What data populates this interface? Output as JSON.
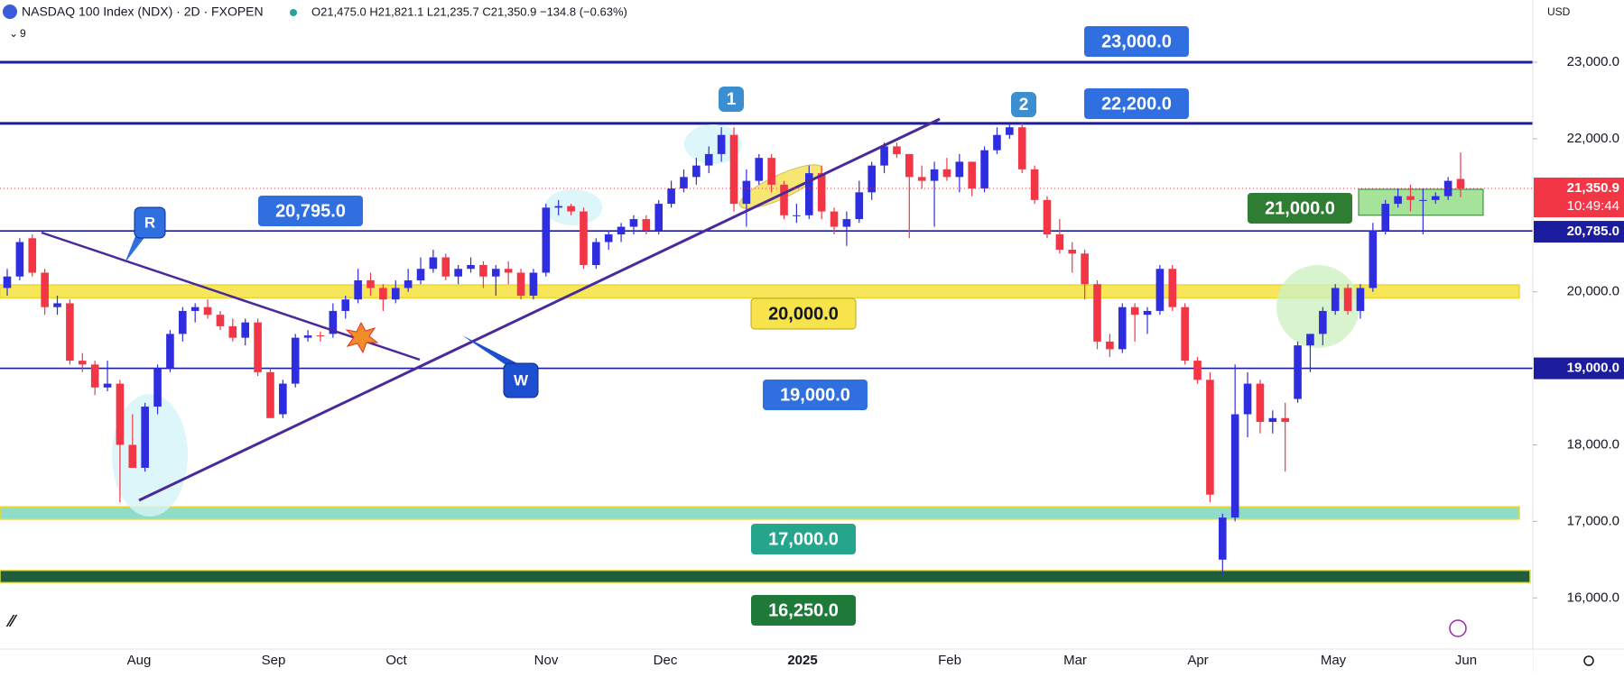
{
  "header": {
    "symbol": "NASDAQ 100 Index (NDX) · 2D · FXOPEN",
    "ohlc": "O21,475.0 H21,821.1 L21,235.7 C21,350.9 −134.8 (−0.63%)",
    "indicator_count": "9",
    "currency": "USD",
    "countdown": "10:49:44"
  },
  "chart_data": {
    "type": "candlestick",
    "up_color": "#2e2ee0",
    "down_color": "#f23645",
    "ylim": [
      15332,
      23813
    ],
    "yticks": [
      {
        "value": 16000,
        "label": "16,000.0"
      },
      {
        "value": 17000,
        "label": "17,000.0"
      },
      {
        "value": 18000,
        "label": "18,000.0"
      },
      {
        "value": 20000,
        "label": "20,000.0"
      },
      {
        "value": 22000,
        "label": "22,000.0"
      },
      {
        "value": 23000,
        "label": "23,000.0"
      }
    ],
    "x_labels": [
      "Aug",
      "Sep",
      "Oct",
      "Nov",
      "Dec",
      "2025",
      "Feb",
      "Mar",
      "Apr",
      "May",
      "Jun"
    ],
    "price_markers": [
      {
        "value": 21350.9,
        "label": "21,350.9",
        "color": "#f23645"
      },
      {
        "value": 20785,
        "label": "20,785.0",
        "color": "#1c1c9e"
      },
      {
        "value": 19000,
        "label": "19,000.0",
        "color": "#1c1c9e"
      }
    ],
    "levels": [
      {
        "value": 23000,
        "label": "23,000.0",
        "kind": "line",
        "color": "#1c1c9e",
        "box_color": "#2f6fe0"
      },
      {
        "value": 22200,
        "label": "22,200.0",
        "kind": "line",
        "color": "#1c1c9e",
        "box_color": "#2f6fe0"
      },
      {
        "value": 20795,
        "label": "20,795.0",
        "kind": "thin",
        "color": "#1c1c9e",
        "box_color": "#2f6fe0"
      },
      {
        "value": 20000,
        "label": "20,000.0",
        "kind": "band",
        "band": [
          19920,
          20090
        ],
        "color": "#f7e65a",
        "box_color": "#f7e34b"
      },
      {
        "value": 19000,
        "label": "19,000.0",
        "kind": "thin",
        "color": "#1c1c9e",
        "box_color": "#2f6fe0"
      },
      {
        "value": 17000,
        "label": "17,000.0",
        "kind": "band",
        "band": [
          17030,
          17190
        ],
        "color": "#8fdcc8",
        "box_color": "#25a58c"
      },
      {
        "value": 16250,
        "label": "16,250.0",
        "kind": "band",
        "band": [
          16200,
          16360
        ],
        "color": "#1e5e3c",
        "box_color": "#1f7a3a"
      },
      {
        "value": 21000,
        "label": "21,000.0",
        "kind": "zone",
        "band": [
          21000,
          21340
        ],
        "color": "#a5e39a",
        "box_color": "#2e7d32"
      }
    ],
    "annotations": [
      "1",
      "2",
      "R",
      "W"
    ],
    "ohlc": [
      [
        20050,
        20300,
        19950,
        20200
      ],
      [
        20200,
        20700,
        20150,
        20650
      ],
      [
        20700,
        20750,
        20200,
        20250
      ],
      [
        20250,
        20300,
        19700,
        19800
      ],
      [
        19800,
        19950,
        19700,
        19850
      ],
      [
        19850,
        19900,
        19050,
        19100
      ],
      [
        19100,
        19200,
        18950,
        19050
      ],
      [
        19050,
        19100,
        18650,
        18750
      ],
      [
        18750,
        19100,
        18700,
        18800
      ],
      [
        18800,
        18850,
        17250,
        18000
      ],
      [
        18000,
        18400,
        17700,
        17700
      ],
      [
        17700,
        18550,
        17650,
        18500
      ],
      [
        18500,
        19050,
        18400,
        19000
      ],
      [
        19000,
        19500,
        18950,
        19450
      ],
      [
        19450,
        19800,
        19350,
        19750
      ],
      [
        19750,
        19850,
        19600,
        19800
      ],
      [
        19800,
        19900,
        19650,
        19700
      ],
      [
        19700,
        19750,
        19500,
        19550
      ],
      [
        19550,
        19650,
        19350,
        19400
      ],
      [
        19400,
        19650,
        19300,
        19600
      ],
      [
        19600,
        19650,
        18900,
        18950
      ],
      [
        18950,
        19000,
        18350,
        18350
      ],
      [
        18400,
        18850,
        18350,
        18800
      ],
      [
        18800,
        19450,
        18750,
        19400
      ],
      [
        19400,
        19500,
        19350,
        19430
      ],
      [
        19430,
        19480,
        19350,
        19420
      ],
      [
        19450,
        19850,
        19400,
        19750
      ],
      [
        19750,
        19950,
        19650,
        19900
      ],
      [
        19900,
        20300,
        19850,
        20150
      ],
      [
        20150,
        20250,
        19950,
        20050
      ],
      [
        20050,
        20100,
        19750,
        19900
      ],
      [
        19900,
        20150,
        19850,
        20050
      ],
      [
        20050,
        20300,
        20000,
        20150
      ],
      [
        20150,
        20450,
        20100,
        20300
      ],
      [
        20300,
        20550,
        20250,
        20450
      ],
      [
        20450,
        20500,
        20150,
        20200
      ],
      [
        20200,
        20350,
        20100,
        20300
      ],
      [
        20300,
        20450,
        20250,
        20350
      ],
      [
        20350,
        20400,
        20050,
        20200
      ],
      [
        20200,
        20350,
        19950,
        20300
      ],
      [
        20300,
        20400,
        20100,
        20250
      ],
      [
        20250,
        20300,
        19900,
        19950
      ],
      [
        19950,
        20300,
        19900,
        20250
      ],
      [
        20250,
        21150,
        20200,
        21100
      ],
      [
        21100,
        21200,
        21000,
        21120
      ],
      [
        21120,
        21150,
        21000,
        21050
      ],
      [
        21050,
        21100,
        20300,
        20350
      ],
      [
        20350,
        20700,
        20300,
        20650
      ],
      [
        20650,
        20800,
        20550,
        20750
      ],
      [
        20750,
        20900,
        20650,
        20850
      ],
      [
        20850,
        21000,
        20750,
        20950
      ],
      [
        20950,
        21000,
        20750,
        20800
      ],
      [
        20800,
        21200,
        20750,
        21150
      ],
      [
        21150,
        21450,
        21100,
        21350
      ],
      [
        21350,
        21600,
        21300,
        21500
      ],
      [
        21500,
        21750,
        21400,
        21650
      ],
      [
        21650,
        21900,
        21550,
        21800
      ],
      [
        21800,
        22150,
        21700,
        22050
      ],
      [
        22050,
        22150,
        21050,
        21150
      ],
      [
        21150,
        21600,
        20850,
        21450
      ],
      [
        21450,
        21800,
        21400,
        21750
      ],
      [
        21750,
        21800,
        21300,
        21400
      ],
      [
        21400,
        21450,
        20950,
        21000
      ],
      [
        21000,
        21150,
        20900,
        21000
      ],
      [
        21000,
        21650,
        20950,
        21550
      ],
      [
        21550,
        21650,
        20950,
        21050
      ],
      [
        21050,
        21100,
        20750,
        20850
      ],
      [
        20850,
        21050,
        20600,
        20950
      ],
      [
        20950,
        21450,
        20900,
        21300
      ],
      [
        21300,
        21700,
        21200,
        21650
      ],
      [
        21650,
        21950,
        21550,
        21900
      ],
      [
        21900,
        21950,
        21750,
        21800
      ],
      [
        21800,
        21800,
        20700,
        21500
      ],
      [
        21500,
        21650,
        21350,
        21450
      ],
      [
        21450,
        21700,
        20850,
        21600
      ],
      [
        21600,
        21750,
        21450,
        21500
      ],
      [
        21500,
        21800,
        21300,
        21700
      ],
      [
        21700,
        21700,
        21250,
        21350
      ],
      [
        21350,
        21900,
        21300,
        21850
      ],
      [
        21850,
        22150,
        21800,
        22050
      ],
      [
        22050,
        22200,
        22000,
        22150
      ],
      [
        22150,
        22200,
        21550,
        21600
      ],
      [
        21600,
        21650,
        21150,
        21200
      ],
      [
        21200,
        21250,
        20700,
        20750
      ],
      [
        20750,
        20950,
        20500,
        20550
      ],
      [
        20550,
        20650,
        20250,
        20500
      ],
      [
        20500,
        20550,
        19900,
        20100
      ],
      [
        20100,
        20150,
        19250,
        19350
      ],
      [
        19350,
        19450,
        19150,
        19250
      ],
      [
        19250,
        19850,
        19200,
        19800
      ],
      [
        19800,
        19850,
        19350,
        19700
      ],
      [
        19700,
        19800,
        19450,
        19750
      ],
      [
        19750,
        20350,
        19700,
        20300
      ],
      [
        20300,
        20350,
        19750,
        19800
      ],
      [
        19800,
        19850,
        19050,
        19100
      ],
      [
        19100,
        19150,
        18800,
        18850
      ],
      [
        18850,
        18950,
        17250,
        17350
      ],
      [
        16500,
        17100,
        16300,
        17050
      ],
      [
        17050,
        19050,
        17000,
        18400
      ],
      [
        18400,
        18950,
        18100,
        18800
      ],
      [
        18800,
        18850,
        18150,
        18300
      ],
      [
        18300,
        18450,
        18150,
        18350
      ],
      [
        18350,
        18550,
        17650,
        18300
      ],
      [
        18600,
        19350,
        18550,
        19300
      ],
      [
        19300,
        19450,
        18950,
        19450
      ],
      [
        19450,
        19800,
        19300,
        19750
      ],
      [
        19750,
        20100,
        19700,
        20050
      ],
      [
        20050,
        20100,
        19700,
        19750
      ],
      [
        19750,
        20100,
        19650,
        20050
      ],
      [
        20050,
        20900,
        20000,
        20800
      ],
      [
        20800,
        21200,
        20750,
        21150
      ],
      [
        21150,
        21350,
        21100,
        21250
      ],
      [
        21250,
        21400,
        21050,
        21200
      ],
      [
        21200,
        21350,
        20750,
        21200
      ],
      [
        21200,
        21300,
        21150,
        21250
      ],
      [
        21250,
        21500,
        21200,
        21450
      ],
      [
        21475,
        21821.1,
        21235.7,
        21350.9
      ]
    ]
  }
}
